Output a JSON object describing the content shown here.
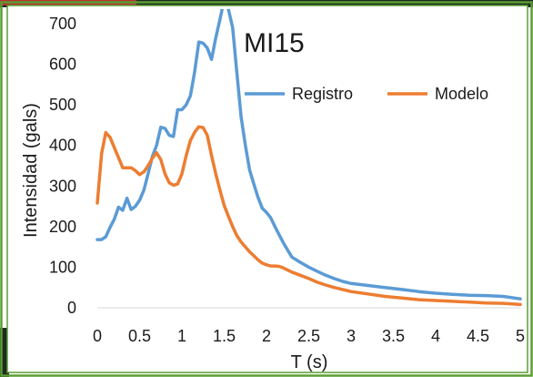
{
  "chart_data": {
    "type": "line",
    "title": "MI15",
    "xlabel": "T (s)",
    "ylabel": "Intensidad (gals)",
    "xlim": [
      0,
      5
    ],
    "ylim": [
      0,
      700
    ],
    "x_ticks": [
      0,
      0.5,
      1,
      1.5,
      2,
      2.5,
      3,
      3.5,
      4,
      4.5,
      5
    ],
    "x_tick_labels": [
      "0",
      "0.5",
      "1",
      "1.5",
      "2",
      "2.5",
      "3",
      "3.5",
      "4",
      "4.5",
      "5"
    ],
    "y_ticks": [
      0,
      100,
      200,
      300,
      400,
      500,
      600,
      700
    ],
    "y_tick_labels": [
      "0",
      "100",
      "200",
      "300",
      "400",
      "500",
      "600",
      "700"
    ],
    "grid": false,
    "legend_position": "top-right",
    "series": [
      {
        "name": "Registro",
        "color": "#5b9bd5",
        "points": [
          [
            0,
            168
          ],
          [
            0.05,
            168
          ],
          [
            0.1,
            175
          ],
          [
            0.15,
            198
          ],
          [
            0.2,
            218
          ],
          [
            0.25,
            248
          ],
          [
            0.3,
            240
          ],
          [
            0.35,
            270
          ],
          [
            0.4,
            242
          ],
          [
            0.45,
            250
          ],
          [
            0.5,
            265
          ],
          [
            0.55,
            290
          ],
          [
            0.6,
            330
          ],
          [
            0.65,
            372
          ],
          [
            0.7,
            400
          ],
          [
            0.75,
            445
          ],
          [
            0.8,
            442
          ],
          [
            0.85,
            425
          ],
          [
            0.9,
            422
          ],
          [
            0.95,
            488
          ],
          [
            1.0,
            488
          ],
          [
            1.05,
            500
          ],
          [
            1.1,
            522
          ],
          [
            1.15,
            580
          ],
          [
            1.2,
            655
          ],
          [
            1.25,
            652
          ],
          [
            1.3,
            640
          ],
          [
            1.35,
            612
          ],
          [
            1.4,
            665
          ],
          [
            1.45,
            710
          ],
          [
            1.5,
            760
          ],
          [
            1.55,
            735
          ],
          [
            1.6,
            690
          ],
          [
            1.65,
            580
          ],
          [
            1.7,
            470
          ],
          [
            1.75,
            400
          ],
          [
            1.8,
            340
          ],
          [
            1.85,
            305
          ],
          [
            1.9,
            272
          ],
          [
            1.95,
            245
          ],
          [
            2.0,
            235
          ],
          [
            2.05,
            222
          ],
          [
            2.1,
            200
          ],
          [
            2.15,
            180
          ],
          [
            2.2,
            160
          ],
          [
            2.25,
            142
          ],
          [
            2.3,
            125
          ],
          [
            2.4,
            112
          ],
          [
            2.5,
            100
          ],
          [
            2.6,
            90
          ],
          [
            2.7,
            80
          ],
          [
            2.8,
            72
          ],
          [
            2.9,
            65
          ],
          [
            3.0,
            60
          ],
          [
            3.2,
            55
          ],
          [
            3.4,
            50
          ],
          [
            3.6,
            45
          ],
          [
            3.8,
            40
          ],
          [
            4.0,
            36
          ],
          [
            4.2,
            33
          ],
          [
            4.4,
            31
          ],
          [
            4.6,
            30
          ],
          [
            4.8,
            28
          ],
          [
            5.0,
            22
          ]
        ]
      },
      {
        "name": "Modelo",
        "color": "#ed7d31",
        "points": [
          [
            0,
            258
          ],
          [
            0.05,
            380
          ],
          [
            0.1,
            432
          ],
          [
            0.15,
            420
          ],
          [
            0.2,
            395
          ],
          [
            0.25,
            370
          ],
          [
            0.3,
            345
          ],
          [
            0.35,
            345
          ],
          [
            0.4,
            345
          ],
          [
            0.45,
            338
          ],
          [
            0.5,
            328
          ],
          [
            0.55,
            335
          ],
          [
            0.6,
            350
          ],
          [
            0.65,
            368
          ],
          [
            0.7,
            382
          ],
          [
            0.75,
            365
          ],
          [
            0.8,
            330
          ],
          [
            0.85,
            308
          ],
          [
            0.9,
            302
          ],
          [
            0.95,
            305
          ],
          [
            1.0,
            330
          ],
          [
            1.05,
            375
          ],
          [
            1.1,
            412
          ],
          [
            1.15,
            432
          ],
          [
            1.2,
            446
          ],
          [
            1.25,
            444
          ],
          [
            1.3,
            425
          ],
          [
            1.35,
            375
          ],
          [
            1.4,
            330
          ],
          [
            1.45,
            290
          ],
          [
            1.5,
            252
          ],
          [
            1.55,
            225
          ],
          [
            1.6,
            200
          ],
          [
            1.65,
            178
          ],
          [
            1.7,
            162
          ],
          [
            1.75,
            150
          ],
          [
            1.8,
            138
          ],
          [
            1.85,
            128
          ],
          [
            1.9,
            118
          ],
          [
            1.95,
            110
          ],
          [
            2.0,
            106
          ],
          [
            2.05,
            103
          ],
          [
            2.1,
            103
          ],
          [
            2.15,
            102
          ],
          [
            2.2,
            98
          ],
          [
            2.3,
            88
          ],
          [
            2.4,
            80
          ],
          [
            2.5,
            72
          ],
          [
            2.6,
            63
          ],
          [
            2.7,
            56
          ],
          [
            2.8,
            50
          ],
          [
            2.9,
            45
          ],
          [
            3.0,
            40
          ],
          [
            3.2,
            34
          ],
          [
            3.4,
            28
          ],
          [
            3.6,
            24
          ],
          [
            3.8,
            20
          ],
          [
            4.0,
            18
          ],
          [
            4.2,
            16
          ],
          [
            4.4,
            14
          ],
          [
            4.6,
            12
          ],
          [
            4.8,
            11
          ],
          [
            5.0,
            8
          ]
        ]
      }
    ]
  },
  "frame": {
    "outer_border_color": "#5a9e32",
    "dark_band_color": "#1f2a22",
    "red_band_color": "#b8312f"
  }
}
